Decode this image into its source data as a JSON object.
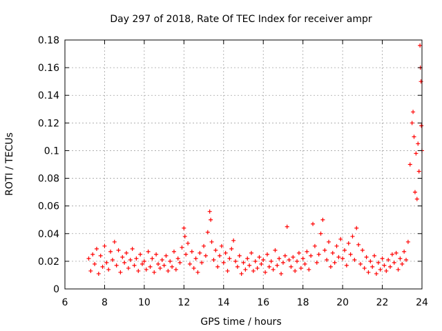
{
  "chart_data": {
    "type": "scatter",
    "title": "Day 297 of 2018, Rate Of TEC Index for receiver ampr",
    "xlabel": "GPS time / hours",
    "ylabel": "ROTI / TECUs",
    "xlim": [
      6,
      24
    ],
    "ylim": [
      0,
      0.18
    ],
    "xticks": [
      6,
      8,
      10,
      12,
      14,
      16,
      18,
      20,
      22,
      24
    ],
    "xtick_labels": [
      "6",
      "8",
      "10",
      "12",
      "14",
      "16",
      "18",
      "20",
      "22",
      "24"
    ],
    "yticks": [
      0,
      0.02,
      0.04,
      0.06,
      0.08,
      0.1,
      0.12,
      0.14,
      0.16,
      0.18
    ],
    "ytick_labels": [
      "0",
      "0.02",
      "0.04",
      "0.06",
      "0.08",
      "0.1",
      "0.12",
      "0.14",
      "0.16",
      "0.18"
    ],
    "grid": true,
    "marker": "+",
    "series": [
      {
        "name": "ROTI",
        "color": "#ff0000",
        "points": [
          [
            7.2,
            0.022
          ],
          [
            7.3,
            0.013
          ],
          [
            7.4,
            0.025
          ],
          [
            7.5,
            0.018
          ],
          [
            7.6,
            0.029
          ],
          [
            7.7,
            0.011
          ],
          [
            7.8,
            0.024
          ],
          [
            7.9,
            0.016
          ],
          [
            8.0,
            0.031
          ],
          [
            8.1,
            0.019
          ],
          [
            8.2,
            0.014
          ],
          [
            8.3,
            0.027
          ],
          [
            8.4,
            0.021
          ],
          [
            8.5,
            0.034
          ],
          [
            8.6,
            0.017
          ],
          [
            8.7,
            0.028
          ],
          [
            8.8,
            0.012
          ],
          [
            8.9,
            0.023
          ],
          [
            9.0,
            0.019
          ],
          [
            9.1,
            0.026
          ],
          [
            9.2,
            0.015
          ],
          [
            9.3,
            0.021
          ],
          [
            9.4,
            0.029
          ],
          [
            9.5,
            0.017
          ],
          [
            9.6,
            0.022
          ],
          [
            9.7,
            0.013
          ],
          [
            9.8,
            0.025
          ],
          [
            9.9,
            0.018
          ],
          [
            10.0,
            0.02
          ],
          [
            10.1,
            0.014
          ],
          [
            10.2,
            0.027
          ],
          [
            10.3,
            0.016
          ],
          [
            10.4,
            0.022
          ],
          [
            10.5,
            0.012
          ],
          [
            10.6,
            0.025
          ],
          [
            10.7,
            0.018
          ],
          [
            10.8,
            0.015
          ],
          [
            10.9,
            0.021
          ],
          [
            11.0,
            0.017
          ],
          [
            11.1,
            0.024
          ],
          [
            11.2,
            0.013
          ],
          [
            11.3,
            0.02
          ],
          [
            11.4,
            0.016
          ],
          [
            11.5,
            0.027
          ],
          [
            11.6,
            0.014
          ],
          [
            11.7,
            0.022
          ],
          [
            11.8,
            0.019
          ],
          [
            11.9,
            0.03
          ],
          [
            12.0,
            0.044
          ],
          [
            12.05,
            0.038
          ],
          [
            12.1,
            0.025
          ],
          [
            12.2,
            0.033
          ],
          [
            12.3,
            0.018
          ],
          [
            12.4,
            0.027
          ],
          [
            12.5,
            0.015
          ],
          [
            12.6,
            0.022
          ],
          [
            12.7,
            0.012
          ],
          [
            12.8,
            0.026
          ],
          [
            12.9,
            0.019
          ],
          [
            13.0,
            0.031
          ],
          [
            13.1,
            0.024
          ],
          [
            13.2,
            0.041
          ],
          [
            13.3,
            0.056
          ],
          [
            13.35,
            0.05
          ],
          [
            13.4,
            0.034
          ],
          [
            13.5,
            0.021
          ],
          [
            13.6,
            0.028
          ],
          [
            13.7,
            0.016
          ],
          [
            13.8,
            0.024
          ],
          [
            13.9,
            0.031
          ],
          [
            14.0,
            0.019
          ],
          [
            14.1,
            0.026
          ],
          [
            14.2,
            0.013
          ],
          [
            14.3,
            0.022
          ],
          [
            14.4,
            0.029
          ],
          [
            14.5,
            0.035
          ],
          [
            14.6,
            0.02
          ],
          [
            14.7,
            0.016
          ],
          [
            14.8,
            0.024
          ],
          [
            14.9,
            0.011
          ],
          [
            15.0,
            0.019
          ],
          [
            15.1,
            0.014
          ],
          [
            15.2,
            0.022
          ],
          [
            15.3,
            0.017
          ],
          [
            15.4,
            0.026
          ],
          [
            15.5,
            0.013
          ],
          [
            15.6,
            0.02
          ],
          [
            15.7,
            0.015
          ],
          [
            15.8,
            0.023
          ],
          [
            15.9,
            0.018
          ],
          [
            16.0,
            0.021
          ],
          [
            16.1,
            0.012
          ],
          [
            16.2,
            0.025
          ],
          [
            16.3,
            0.016
          ],
          [
            16.4,
            0.02
          ],
          [
            16.5,
            0.014
          ],
          [
            16.6,
            0.028
          ],
          [
            16.7,
            0.017
          ],
          [
            16.8,
            0.022
          ],
          [
            16.9,
            0.011
          ],
          [
            17.0,
            0.019
          ],
          [
            17.1,
            0.024
          ],
          [
            17.2,
            0.045
          ],
          [
            17.3,
            0.021
          ],
          [
            17.4,
            0.016
          ],
          [
            17.5,
            0.023
          ],
          [
            17.6,
            0.013
          ],
          [
            17.7,
            0.02
          ],
          [
            17.8,
            0.026
          ],
          [
            17.9,
            0.015
          ],
          [
            18.0,
            0.022
          ],
          [
            18.1,
            0.018
          ],
          [
            18.2,
            0.027
          ],
          [
            18.3,
            0.014
          ],
          [
            18.4,
            0.024
          ],
          [
            18.5,
            0.047
          ],
          [
            18.6,
            0.031
          ],
          [
            18.7,
            0.019
          ],
          [
            18.8,
            0.025
          ],
          [
            18.9,
            0.04
          ],
          [
            19.0,
            0.05
          ],
          [
            19.1,
            0.028
          ],
          [
            19.2,
            0.021
          ],
          [
            19.3,
            0.034
          ],
          [
            19.4,
            0.016
          ],
          [
            19.5,
            0.026
          ],
          [
            19.6,
            0.019
          ],
          [
            19.7,
            0.031
          ],
          [
            19.8,
            0.023
          ],
          [
            19.9,
            0.036
          ],
          [
            20.0,
            0.022
          ],
          [
            20.1,
            0.028
          ],
          [
            20.2,
            0.017
          ],
          [
            20.3,
            0.033
          ],
          [
            20.4,
            0.025
          ],
          [
            20.5,
            0.038
          ],
          [
            20.6,
            0.021
          ],
          [
            20.7,
            0.044
          ],
          [
            20.8,
            0.032
          ],
          [
            20.9,
            0.018
          ],
          [
            21.0,
            0.028
          ],
          [
            21.1,
            0.015
          ],
          [
            21.2,
            0.023
          ],
          [
            21.3,
            0.012
          ],
          [
            21.4,
            0.02
          ],
          [
            21.5,
            0.016
          ],
          [
            21.6,
            0.024
          ],
          [
            21.7,
            0.011
          ],
          [
            21.8,
            0.019
          ],
          [
            21.9,
            0.014
          ],
          [
            22.0,
            0.022
          ],
          [
            22.1,
            0.017
          ],
          [
            22.2,
            0.013
          ],
          [
            22.3,
            0.021
          ],
          [
            22.4,
            0.016
          ],
          [
            22.5,
            0.025
          ],
          [
            22.6,
            0.019
          ],
          [
            22.7,
            0.026
          ],
          [
            22.8,
            0.014
          ],
          [
            22.9,
            0.022
          ],
          [
            23.0,
            0.018
          ],
          [
            23.1,
            0.027
          ],
          [
            23.2,
            0.021
          ],
          [
            23.3,
            0.034
          ],
          [
            23.4,
            0.09
          ],
          [
            23.5,
            0.12
          ],
          [
            23.55,
            0.128
          ],
          [
            23.6,
            0.11
          ],
          [
            23.65,
            0.07
          ],
          [
            23.7,
            0.098
          ],
          [
            23.75,
            0.065
          ],
          [
            23.8,
            0.105
          ],
          [
            23.85,
            0.085
          ],
          [
            23.9,
            0.176
          ],
          [
            23.92,
            0.16
          ],
          [
            23.95,
            0.15
          ],
          [
            23.97,
            0.118
          ],
          [
            24.0,
            0.1
          ]
        ]
      }
    ]
  }
}
